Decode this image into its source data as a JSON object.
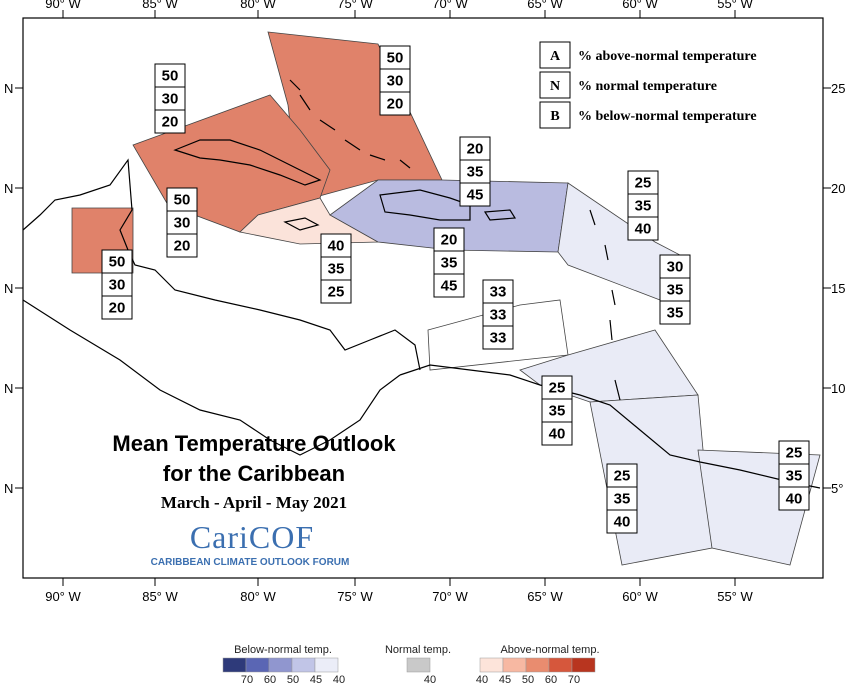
{
  "title_line1": "Mean Temperature Outlook",
  "title_line2": "for the Caribbean",
  "period": "March - April - May 2021",
  "brand": "CariCOF",
  "brand_sub": "CARIBBEAN CLIMATE OUTLOOK FORUM",
  "lon_ticks": [
    "90° W",
    "85° W",
    "80° W",
    "75° W",
    "70° W",
    "65° W",
    "60° W",
    "55° W"
  ],
  "lat_ticks_left": [
    "N",
    "N",
    "N",
    "N",
    "N"
  ],
  "lat_ticks_right": [
    "25",
    "20",
    "15",
    "10",
    "5°"
  ],
  "key": [
    {
      "letter": "A",
      "text": "% above-normal temperature"
    },
    {
      "letter": "N",
      "text": "% normal temperature"
    },
    {
      "letter": "B",
      "text": "% below-normal temperature"
    }
  ],
  "regions": [
    {
      "name": "bahamas",
      "values": [
        "50",
        "30",
        "20"
      ],
      "category": "above50"
    },
    {
      "name": "cuba",
      "values": [
        "50",
        "30",
        "20"
      ],
      "category": "above50"
    },
    {
      "name": "cayman",
      "values": [
        "50",
        "30",
        "20"
      ],
      "category": "above50"
    },
    {
      "name": "belize",
      "values": [
        "50",
        "30",
        "20"
      ],
      "category": "above50"
    },
    {
      "name": "jamaica",
      "values": [
        "40",
        "35",
        "25"
      ],
      "category": "above40"
    },
    {
      "name": "hispaniola",
      "values": [
        "20",
        "35",
        "45"
      ],
      "category": "below45"
    },
    {
      "name": "puerto-rico",
      "values": [
        "20",
        "35",
        "45"
      ],
      "category": "below45"
    },
    {
      "name": "leeward-islands",
      "values": [
        "25",
        "35",
        "40"
      ],
      "category": "below40"
    },
    {
      "name": "windward-islands",
      "values": [
        "30",
        "35",
        "35"
      ],
      "category": "none"
    },
    {
      "name": "abc-islands",
      "values": [
        "33",
        "33",
        "33"
      ],
      "category": "none"
    },
    {
      "name": "trinidad",
      "values": [
        "25",
        "35",
        "40"
      ],
      "category": "below40"
    },
    {
      "name": "guyana",
      "values": [
        "25",
        "35",
        "40"
      ],
      "category": "below40"
    },
    {
      "name": "suriname-guiana",
      "values": [
        "25",
        "35",
        "40"
      ],
      "category": "below40"
    }
  ],
  "colors": {
    "above50": "#e0826a",
    "above40": "#fbe3da",
    "below45": "#b9bbe0",
    "below40": "#e9ebf6",
    "none": "#ffffff"
  },
  "scale": {
    "below_title": "Below-normal temp.",
    "normal_title": "Normal temp.",
    "above_title": "Above-normal temp.",
    "below_colors": [
      "#2e3a7a",
      "#5a66b4",
      "#9096cf",
      "#c1c5e7",
      "#ebedf8"
    ],
    "below_ticks": [
      "70",
      "60",
      "50",
      "45",
      "40"
    ],
    "normal_colors": [
      "#c9c9c9"
    ],
    "normal_ticks": [
      "40"
    ],
    "above_colors": [
      "#fde4da",
      "#f7b8a2",
      "#e98c6f",
      "#d6573c",
      "#b8351f"
    ],
    "above_ticks": [
      "40",
      "45",
      "50",
      "60",
      "70"
    ]
  }
}
